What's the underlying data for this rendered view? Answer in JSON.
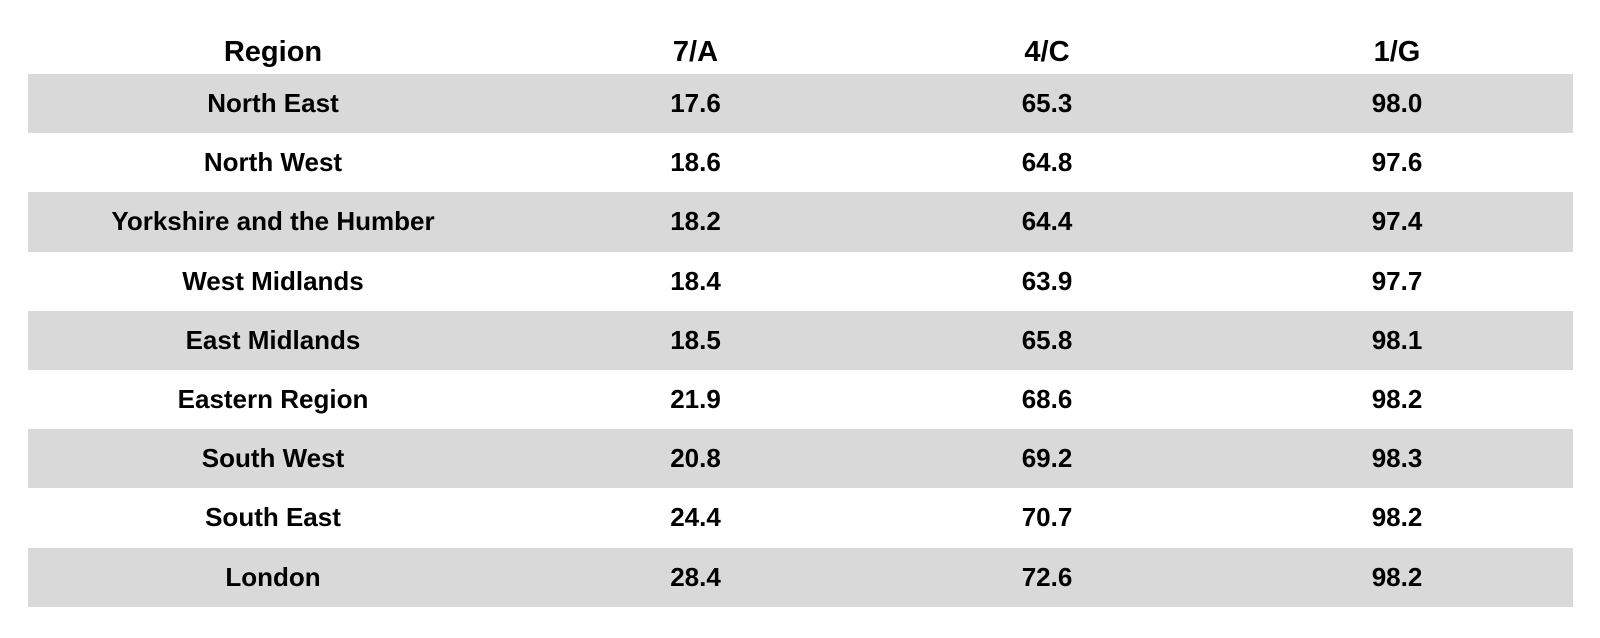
{
  "table": {
    "header": [
      "Region",
      "7/A",
      "4/C",
      "1/G"
    ],
    "rows": [
      [
        "North East",
        "17.6",
        "65.3",
        "98.0"
      ],
      [
        "North West",
        "18.6",
        "64.8",
        "97.6"
      ],
      [
        "Yorkshire and the Humber",
        "18.2",
        "64.4",
        "97.4"
      ],
      [
        "West Midlands",
        "18.4",
        "63.9",
        "97.7"
      ],
      [
        "East Midlands",
        "18.5",
        "65.8",
        "98.1"
      ],
      [
        "Eastern Region",
        "21.9",
        "68.6",
        "98.2"
      ],
      [
        "South West",
        "20.8",
        "69.2",
        "98.3"
      ],
      [
        "South East",
        "24.4",
        "70.7",
        "98.2"
      ],
      [
        "London",
        "28.4",
        "72.6",
        "98.2"
      ]
    ]
  }
}
